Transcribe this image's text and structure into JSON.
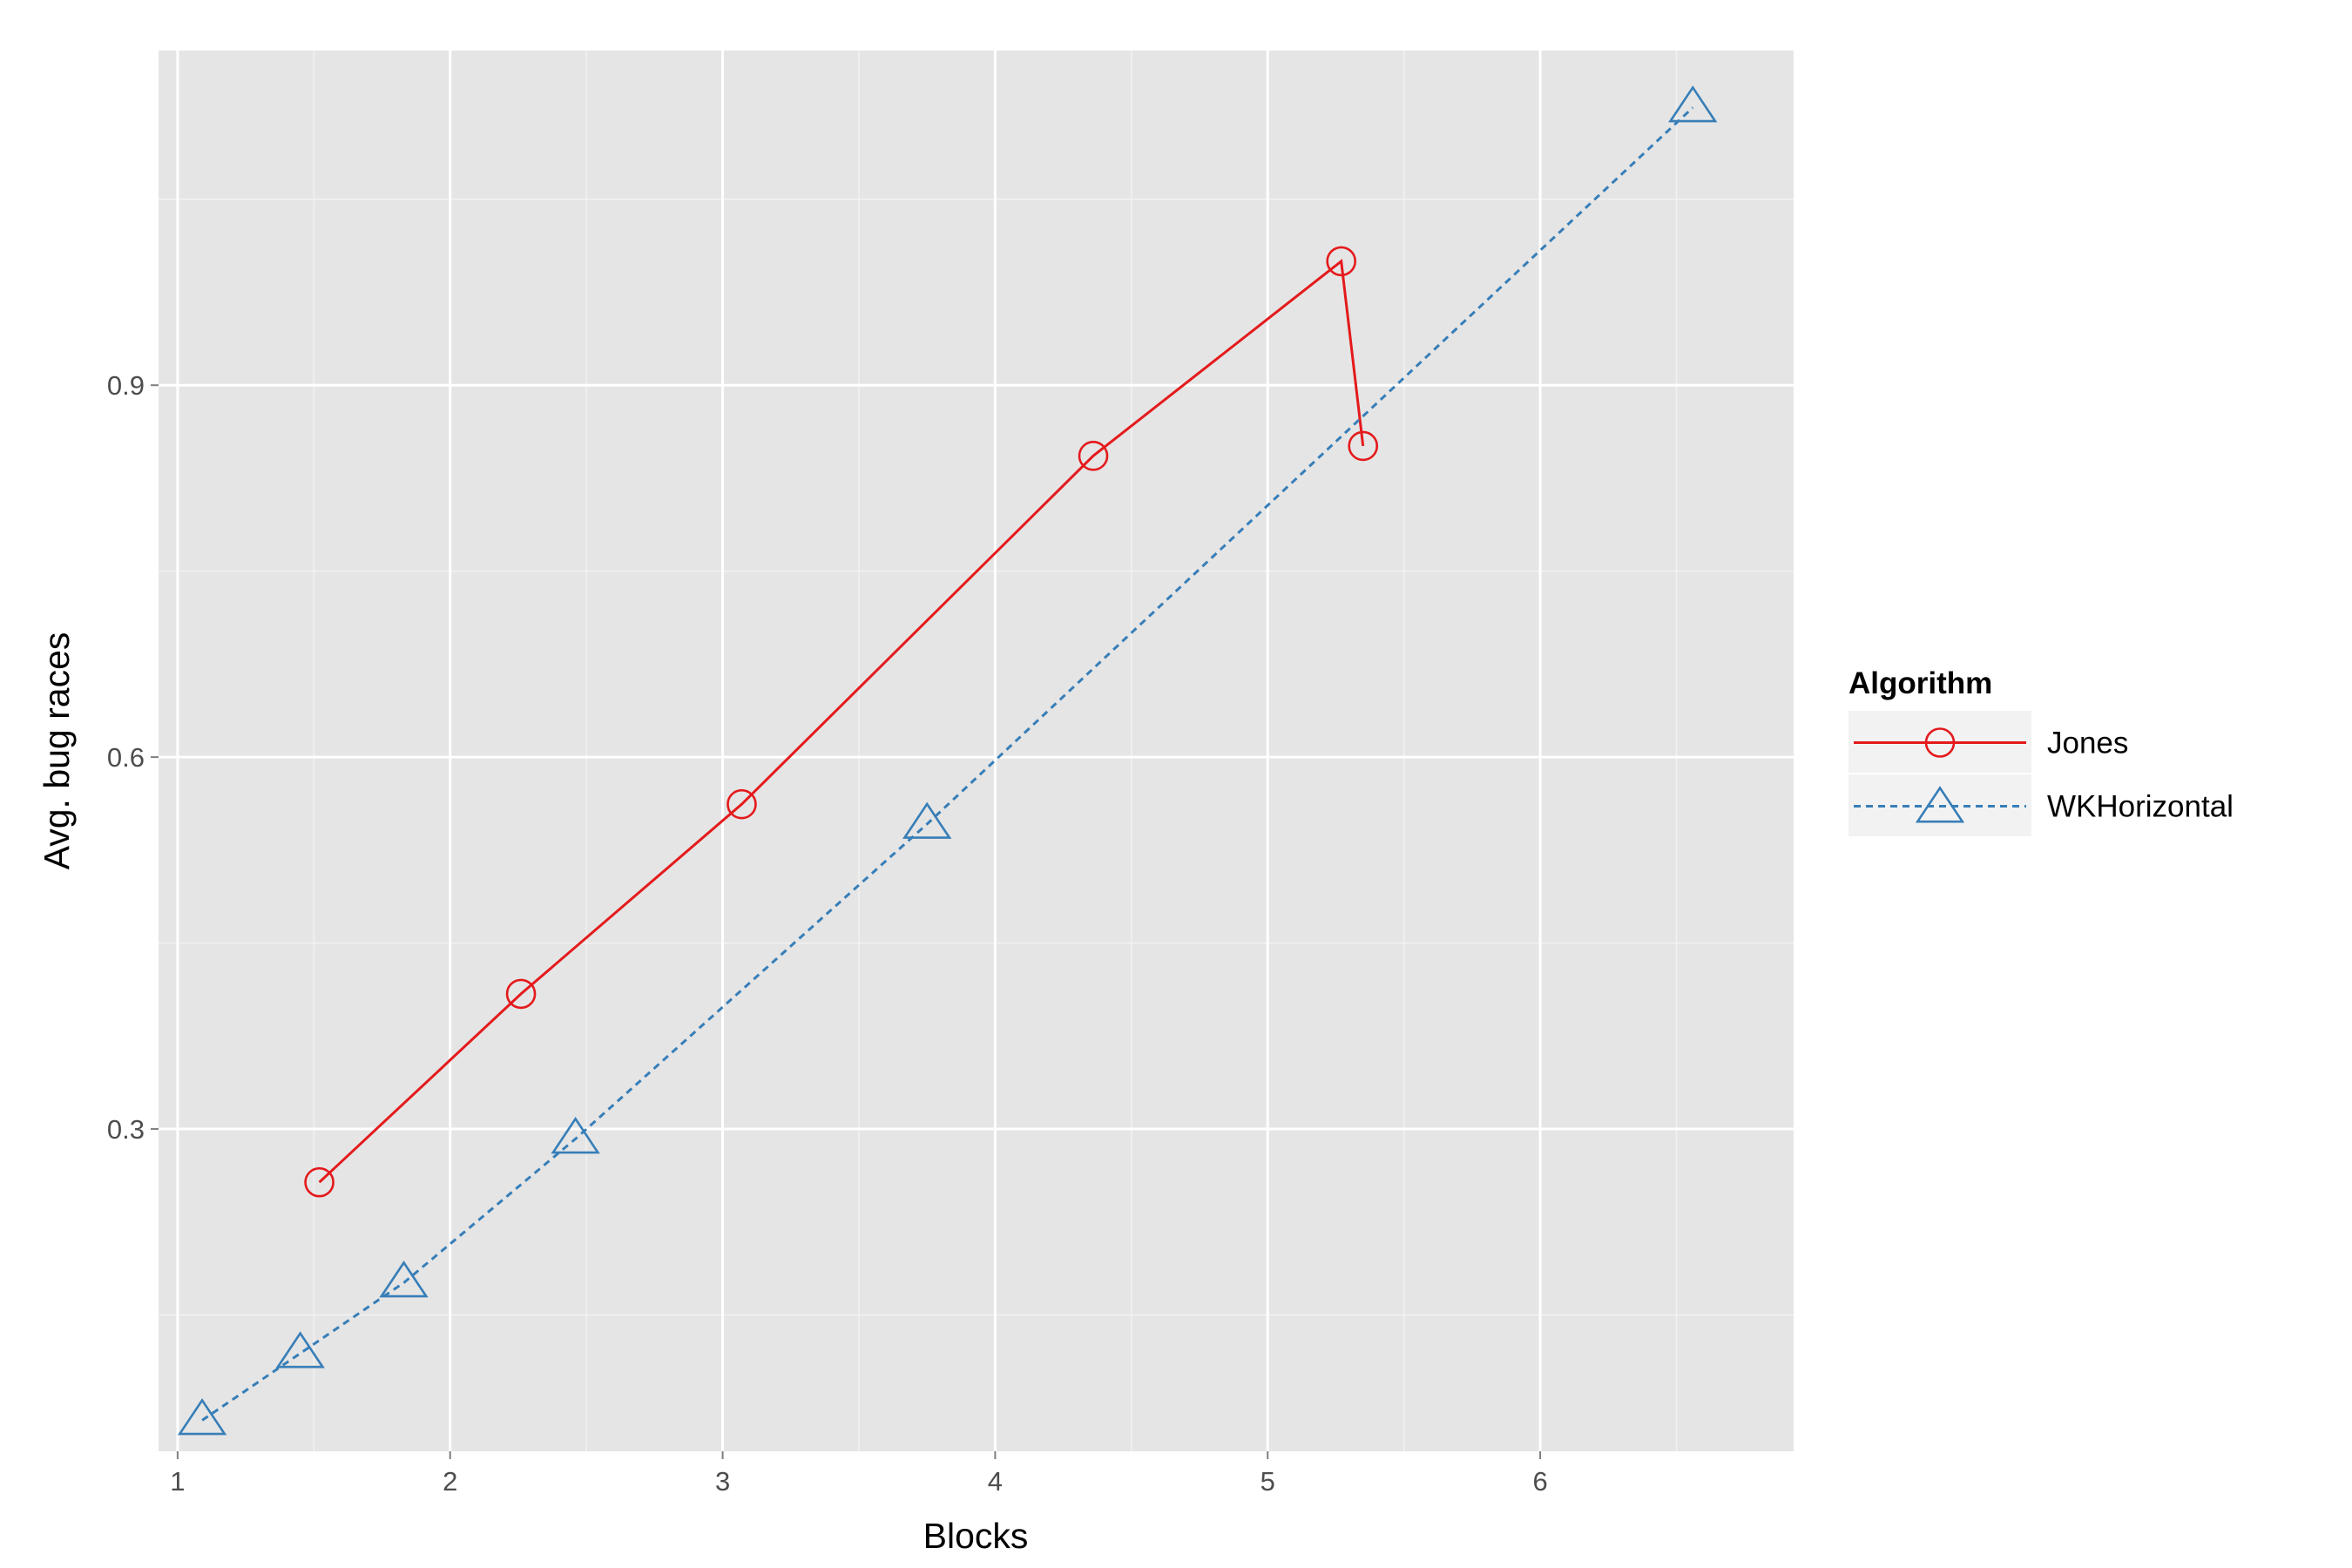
{
  "chart_data": {
    "type": "line",
    "title": "",
    "xlabel": "Blocks",
    "ylabel": "Avg. bug races",
    "xlim": [
      0.93,
      6.93
    ],
    "ylim": [
      0.04,
      1.17
    ],
    "x_ticks": [
      1,
      2,
      3,
      4,
      5,
      6
    ],
    "y_ticks": [
      0.3,
      0.6,
      0.9
    ],
    "x_tick_labels": [
      "1",
      "2",
      "3",
      "4",
      "5",
      "6"
    ],
    "y_tick_labels": [
      "0.3",
      "0.6",
      "0.9"
    ],
    "grid": true,
    "legend": {
      "title": "Algorithm",
      "placement": "right"
    },
    "series": [
      {
        "name": "Jones",
        "color": "#e41a1c",
        "marker": "circle",
        "line": "solid",
        "x": [
          1.52,
          2.26,
          3.07,
          4.36,
          5.27,
          5.35
        ],
        "y": [
          0.257,
          0.409,
          0.562,
          0.843,
          1.0,
          0.851
        ]
      },
      {
        "name": "WKHorizontal",
        "color": "#377eb8",
        "marker": "triangle",
        "line": "dashed",
        "x": [
          1.09,
          1.45,
          1.83,
          2.46,
          3.75,
          6.56
        ],
        "y": [
          0.065,
          0.119,
          0.176,
          0.292,
          0.546,
          1.124
        ]
      }
    ]
  }
}
